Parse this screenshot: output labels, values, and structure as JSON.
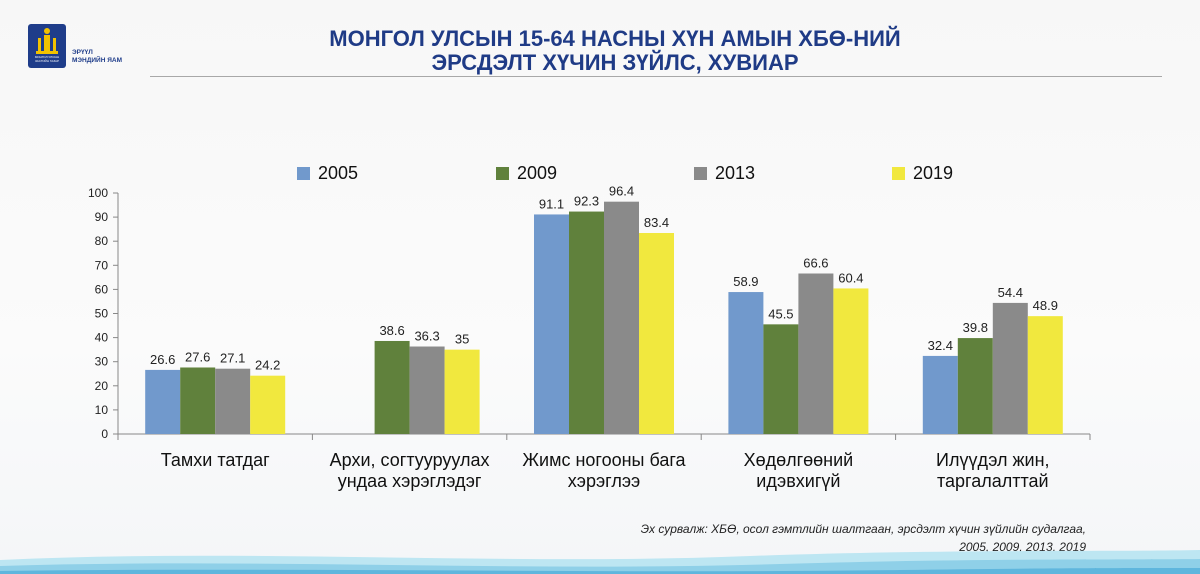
{
  "header": {
    "title_line1": "МОНГОЛ УЛСЫН 15-64 НАСНЫ ХҮН АМЫН ХБӨ-НИЙ",
    "title_line2": "ЭРСДЭЛТ ХҮЧИН ЗҮЙЛС, ХУВИАР"
  },
  "logo": {
    "small_text": "МОНГОЛ УЛСЫН\nЗАСГИЙН ГАЗАР",
    "name": "ЭРҮҮЛ\nМЭНДИЙН ЯАМ"
  },
  "source_note": "Эх сурвалж: ХБӨ, осол гэмтлийн шалтгаан, эрсдэлт хүчин зүйлийн судалгаа,\n2005, 2009, 2013, 2019",
  "colors": {
    "s2005": "#7199cc",
    "s2009": "#60813c",
    "s2013": "#8a8a8a",
    "s2019": "#f1e83e"
  },
  "chart_data": {
    "type": "bar",
    "categories": [
      [
        "Тамхи татдаг"
      ],
      [
        "Архи, согтууруулах",
        "ундаа хэрэглэдэг"
      ],
      [
        "Жимс ногооны бага",
        "хэрэглээ"
      ],
      [
        "Хөдөлгөөний",
        "идэвхигүй"
      ],
      [
        "Илүүдэл жин,",
        "таргалалттай"
      ]
    ],
    "series": [
      {
        "name": "2005",
        "values": [
          26.6,
          null,
          91.1,
          58.9,
          32.4
        ],
        "labels": [
          "26.6",
          "",
          "91.1",
          "58.9",
          "32.4"
        ]
      },
      {
        "name": "2009",
        "values": [
          27.6,
          38.6,
          92.3,
          45.5,
          39.8
        ],
        "labels": [
          "27.6",
          "38.6",
          "92.3",
          "45.5",
          "39.8"
        ]
      },
      {
        "name": "2013",
        "values": [
          27.1,
          36.3,
          96.4,
          66.6,
          54.4
        ],
        "labels": [
          "27.1",
          "36.3",
          "96.4",
          "66.6",
          "54.4"
        ]
      },
      {
        "name": "2019",
        "values": [
          24.2,
          35,
          83.4,
          60.4,
          48.9
        ],
        "labels": [
          "24.2",
          "35",
          "83.4",
          "60.4",
          "48.9"
        ]
      }
    ],
    "ylim": [
      0,
      100
    ],
    "yticks": [
      "0",
      "10",
      "20",
      "30",
      "40",
      "50",
      "60",
      "70",
      "80",
      "90",
      "100"
    ],
    "legend_position": "top",
    "grid": false
  }
}
